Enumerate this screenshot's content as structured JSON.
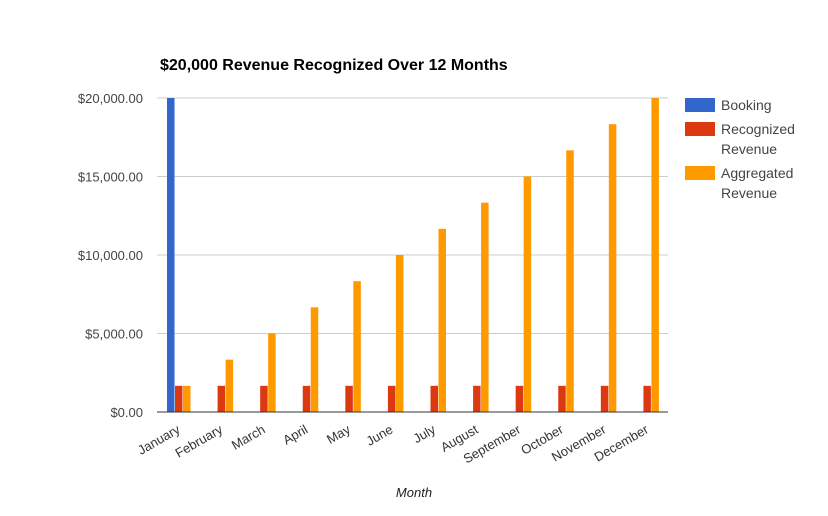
{
  "chart_data": {
    "type": "bar",
    "title": "$20,000 Revenue Recognized Over 12 Months",
    "xlabel": "Month",
    "ylabel": "",
    "ylim": [
      0,
      20000
    ],
    "yticks": [
      0,
      5000,
      10000,
      15000,
      20000
    ],
    "ytick_labels": [
      "$0.00",
      "$5,000.00",
      "$10,000.00",
      "$15,000.00",
      "$20,000.00"
    ],
    "grid": true,
    "legend_position": "right",
    "categories": [
      "January",
      "February",
      "March",
      "April",
      "May",
      "June",
      "July",
      "August",
      "September",
      "October",
      "November",
      "December"
    ],
    "series": [
      {
        "name": "Booking",
        "color": "#3366cc",
        "values": [
          20000,
          0,
          0,
          0,
          0,
          0,
          0,
          0,
          0,
          0,
          0,
          0
        ]
      },
      {
        "name": "Recognized Revenue",
        "legend_lines": [
          "Recognized",
          "Revenue"
        ],
        "color": "#dc3912",
        "values": [
          1666.67,
          1666.67,
          1666.67,
          1666.67,
          1666.67,
          1666.67,
          1666.67,
          1666.67,
          1666.67,
          1666.67,
          1666.67,
          1666.67
        ]
      },
      {
        "name": "Aggregated Revenue",
        "legend_lines": [
          "Aggregated",
          "Revenue"
        ],
        "color": "#ff9900",
        "values": [
          1666.67,
          3333.33,
          5000,
          6666.67,
          8333.33,
          10000,
          11666.67,
          13333.33,
          15000,
          16666.67,
          18333.33,
          20000
        ]
      }
    ]
  }
}
